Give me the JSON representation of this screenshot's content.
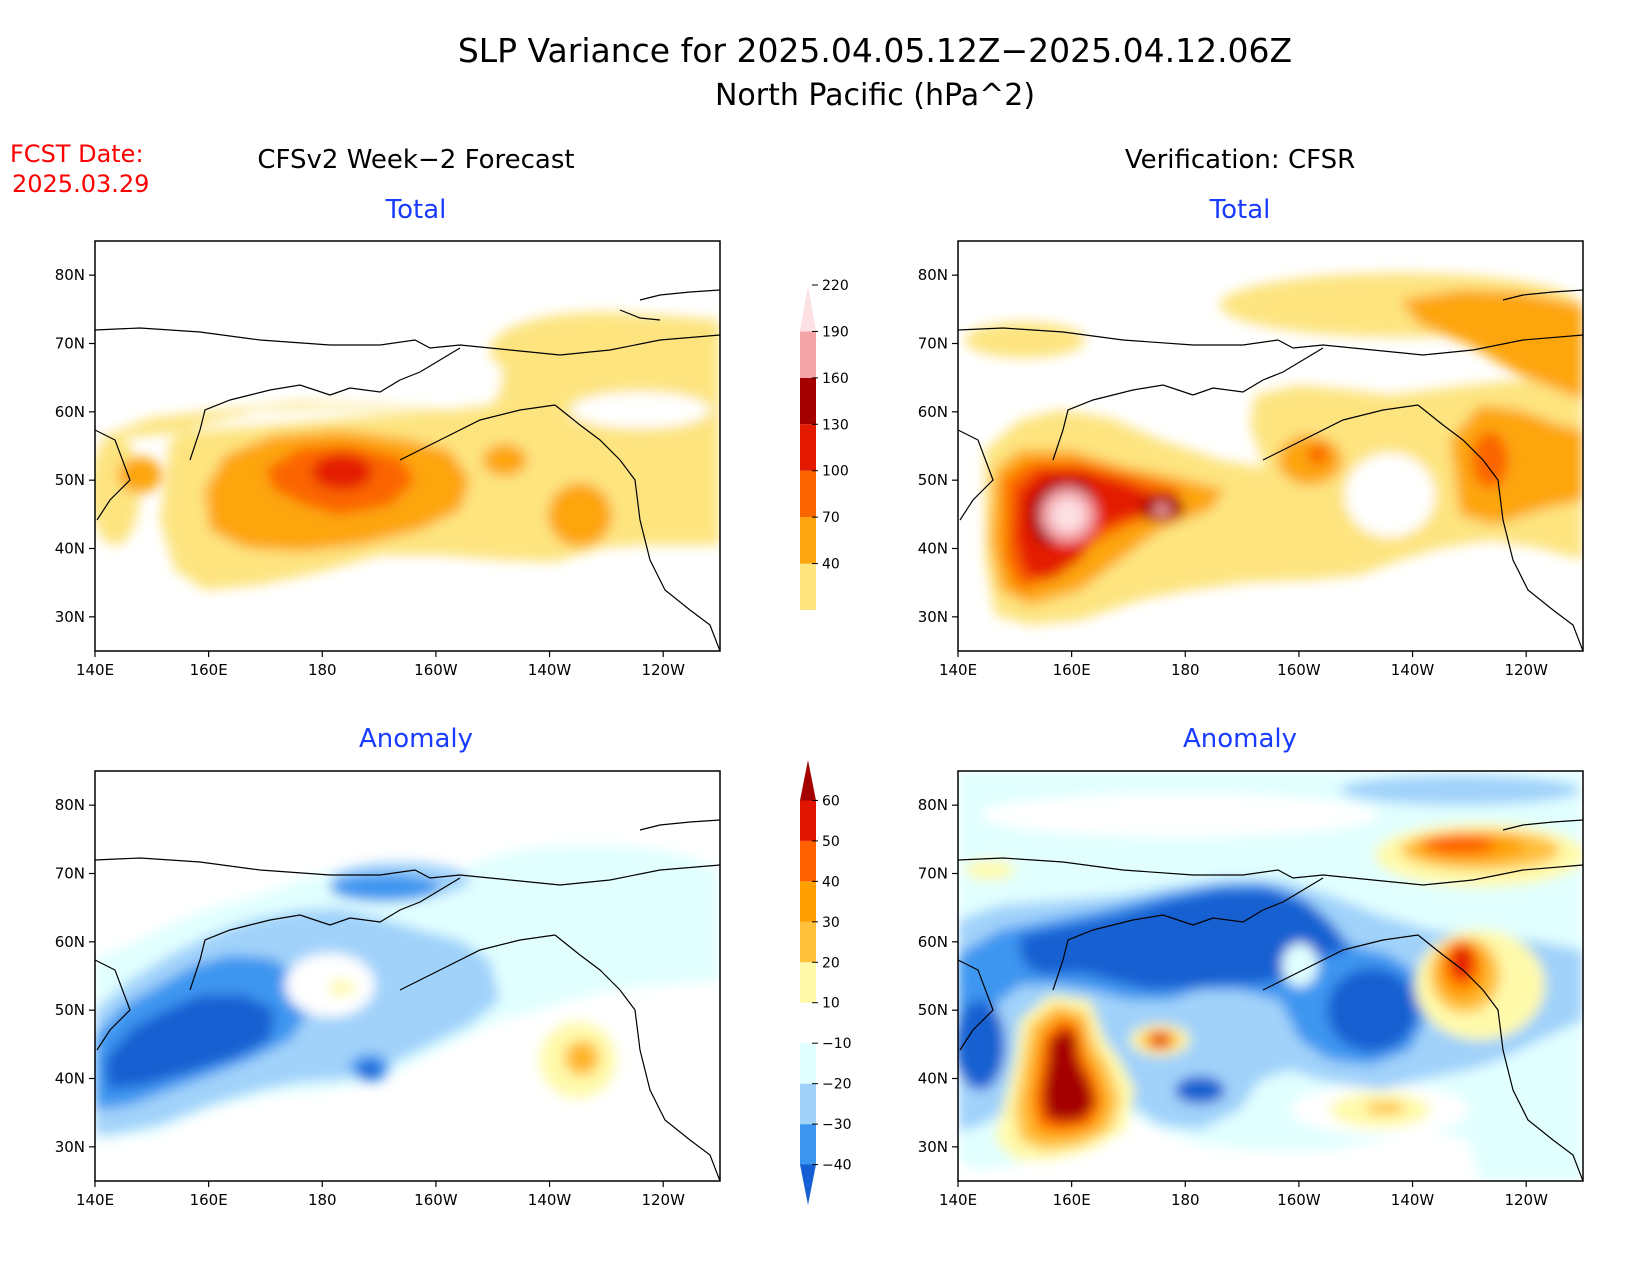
{
  "title": {
    "line1": "SLP Variance for 2025.04.05.12Z−2025.04.12.06Z",
    "line2": "North Pacific (hPa^2)"
  },
  "fcst_date": {
    "label": "FCST Date:",
    "value": "2025.03.29"
  },
  "columns": {
    "left": "CFSv2 Week−2 Forecast",
    "right": "Verification: CFSR"
  },
  "panels": {
    "total_label": "Total",
    "anomaly_label": "Anomaly"
  },
  "axes": {
    "x_ticks": [
      "140E",
      "160E",
      "180",
      "160W",
      "140W",
      "120W"
    ],
    "y_ticks": [
      "80N",
      "70N",
      "60N",
      "50N",
      "40N",
      "30N"
    ]
  },
  "colorbar_total": {
    "levels": [
      "40",
      "70",
      "100",
      "130",
      "160",
      "190",
      "220"
    ],
    "colors": [
      "#fde47f",
      "#fda50e",
      "#fb6500",
      "#e41a00",
      "#a50000",
      "#f4a3a8",
      "#fde0e4"
    ]
  },
  "colorbar_anomaly": {
    "levels": [
      "−40",
      "−30",
      "−20",
      "−10",
      "10",
      "20",
      "30",
      "40",
      "50",
      "60"
    ],
    "colors": [
      "#1460d2",
      "#3c96f0",
      "#a0d2fa",
      "#e1ffff",
      "#ffffff",
      "#fffaaa",
      "#ffc03c",
      "#ffa000",
      "#ff6000",
      "#e11400",
      "#a50000"
    ]
  }
}
